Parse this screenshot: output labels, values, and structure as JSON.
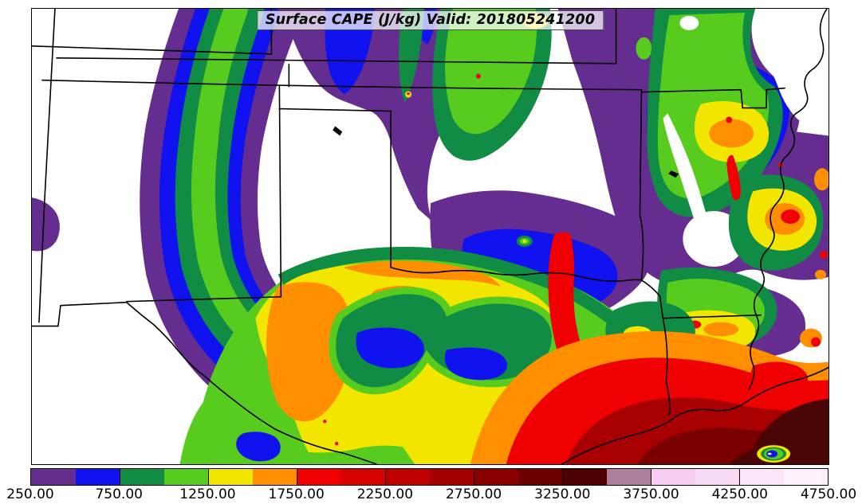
{
  "title": "Surface CAPE (J/kg) Valid: 201805241200",
  "colorbar": {
    "tick_labels": [
      "250.00",
      "750.00",
      "1250.00",
      "1750.00",
      "2250.00",
      "2750.00",
      "3250.00",
      "3750.00",
      "4250.00",
      "4750.00"
    ],
    "segment_colors": [
      "#652D90",
      "#1013EF",
      "#108C44",
      "#58CC1E",
      "#F2E500",
      "#FF8E00",
      "#F00000",
      "#D80000",
      "#BE0000",
      "#A40000",
      "#8A0000",
      "#6E0000",
      "#4E0000",
      "#AE7F9B",
      "#F7CDF3",
      "#F9DAF4",
      "#FBE5F8",
      "#FDF0FB"
    ],
    "value_min": 250,
    "value_max": 4750,
    "tick_color": "#000000",
    "border_color": "#000000"
  },
  "palette": {
    "white": "#FFFFFF",
    "purple": "#652D90",
    "blue": "#1013EF",
    "dkgreen": "#108C44",
    "brgreen": "#58CC1E",
    "yellow": "#F2E500",
    "orange": "#FF8E00",
    "red": "#F00000",
    "dred1": "#A80000",
    "dred2": "#7A0000",
    "dred3": "#4A0505",
    "border": "#000000"
  },
  "map": {
    "background": "#FFFFFF",
    "frame_color": "#000000",
    "boundary_color": "#000000"
  }
}
